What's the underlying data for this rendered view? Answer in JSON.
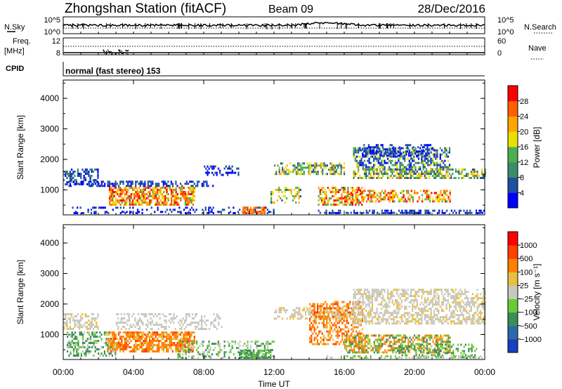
{
  "header": {
    "station": "Zhongshan Station (fitACF)",
    "beam": "Beam 09",
    "date": "28/Dec/2016"
  },
  "status_panel": {
    "nsky_label": "N.Sky",
    "nsearch_label": "N.Search",
    "freq_label": "Freq.",
    "freq_unit": "[MHz]",
    "nave_label": "Nave",
    "cpid_label": "CPID",
    "cpid_value": "normal (fast stereo) 153",
    "nsky_ticks": [
      "10^5",
      "10^0"
    ],
    "nsearch_ticks": [
      "10^5",
      "10^0"
    ],
    "freq_ticks": [
      "12",
      "8"
    ],
    "nave_ticks": [
      "60",
      "0"
    ]
  },
  "chart_data": [
    {
      "type": "heatmap",
      "panel": "power",
      "ylabel": "Slant Range [km]",
      "yticks": [
        "1000",
        "2000",
        "3000",
        "4000"
      ],
      "ylim": [
        180,
        4600
      ],
      "xlim": [
        0,
        24
      ],
      "colorbar_label": "Power [dB]",
      "colorbar_ticks": [
        "4",
        "8",
        "12",
        "16",
        "20",
        "24",
        "28"
      ],
      "colors": [
        "#0000ff",
        "#1f4fa0",
        "#3b8c6b",
        "#4caf50",
        "#e8e000",
        "#ffa500",
        "#ff6000",
        "#ff0000"
      ]
    },
    {
      "type": "heatmap",
      "panel": "velocity",
      "ylabel": "Slant Range [km]",
      "yticks": [
        "1000",
        "2000",
        "3000",
        "4000"
      ],
      "ylim": [
        180,
        4600
      ],
      "xlim": [
        0,
        24
      ],
      "colorbar_label": "Velocity [m s⁻¹]",
      "colorbar_ticks": [
        "1000",
        "500",
        "100",
        "25",
        "−25",
        "−100",
        "−500",
        "−1000"
      ],
      "colors": [
        "#1a3fbf",
        "#2a6aa8",
        "#3c8c5c",
        "#66cc33",
        "#c8c8c0",
        "#e8c040",
        "#ff8000",
        "#ff4000",
        "#ff0000"
      ]
    }
  ],
  "xaxis": {
    "ticks": [
      "00:00",
      "04:00",
      "08:00",
      "12:00",
      "16:00",
      "20:00",
      "00:00"
    ],
    "label": "Time UT"
  }
}
